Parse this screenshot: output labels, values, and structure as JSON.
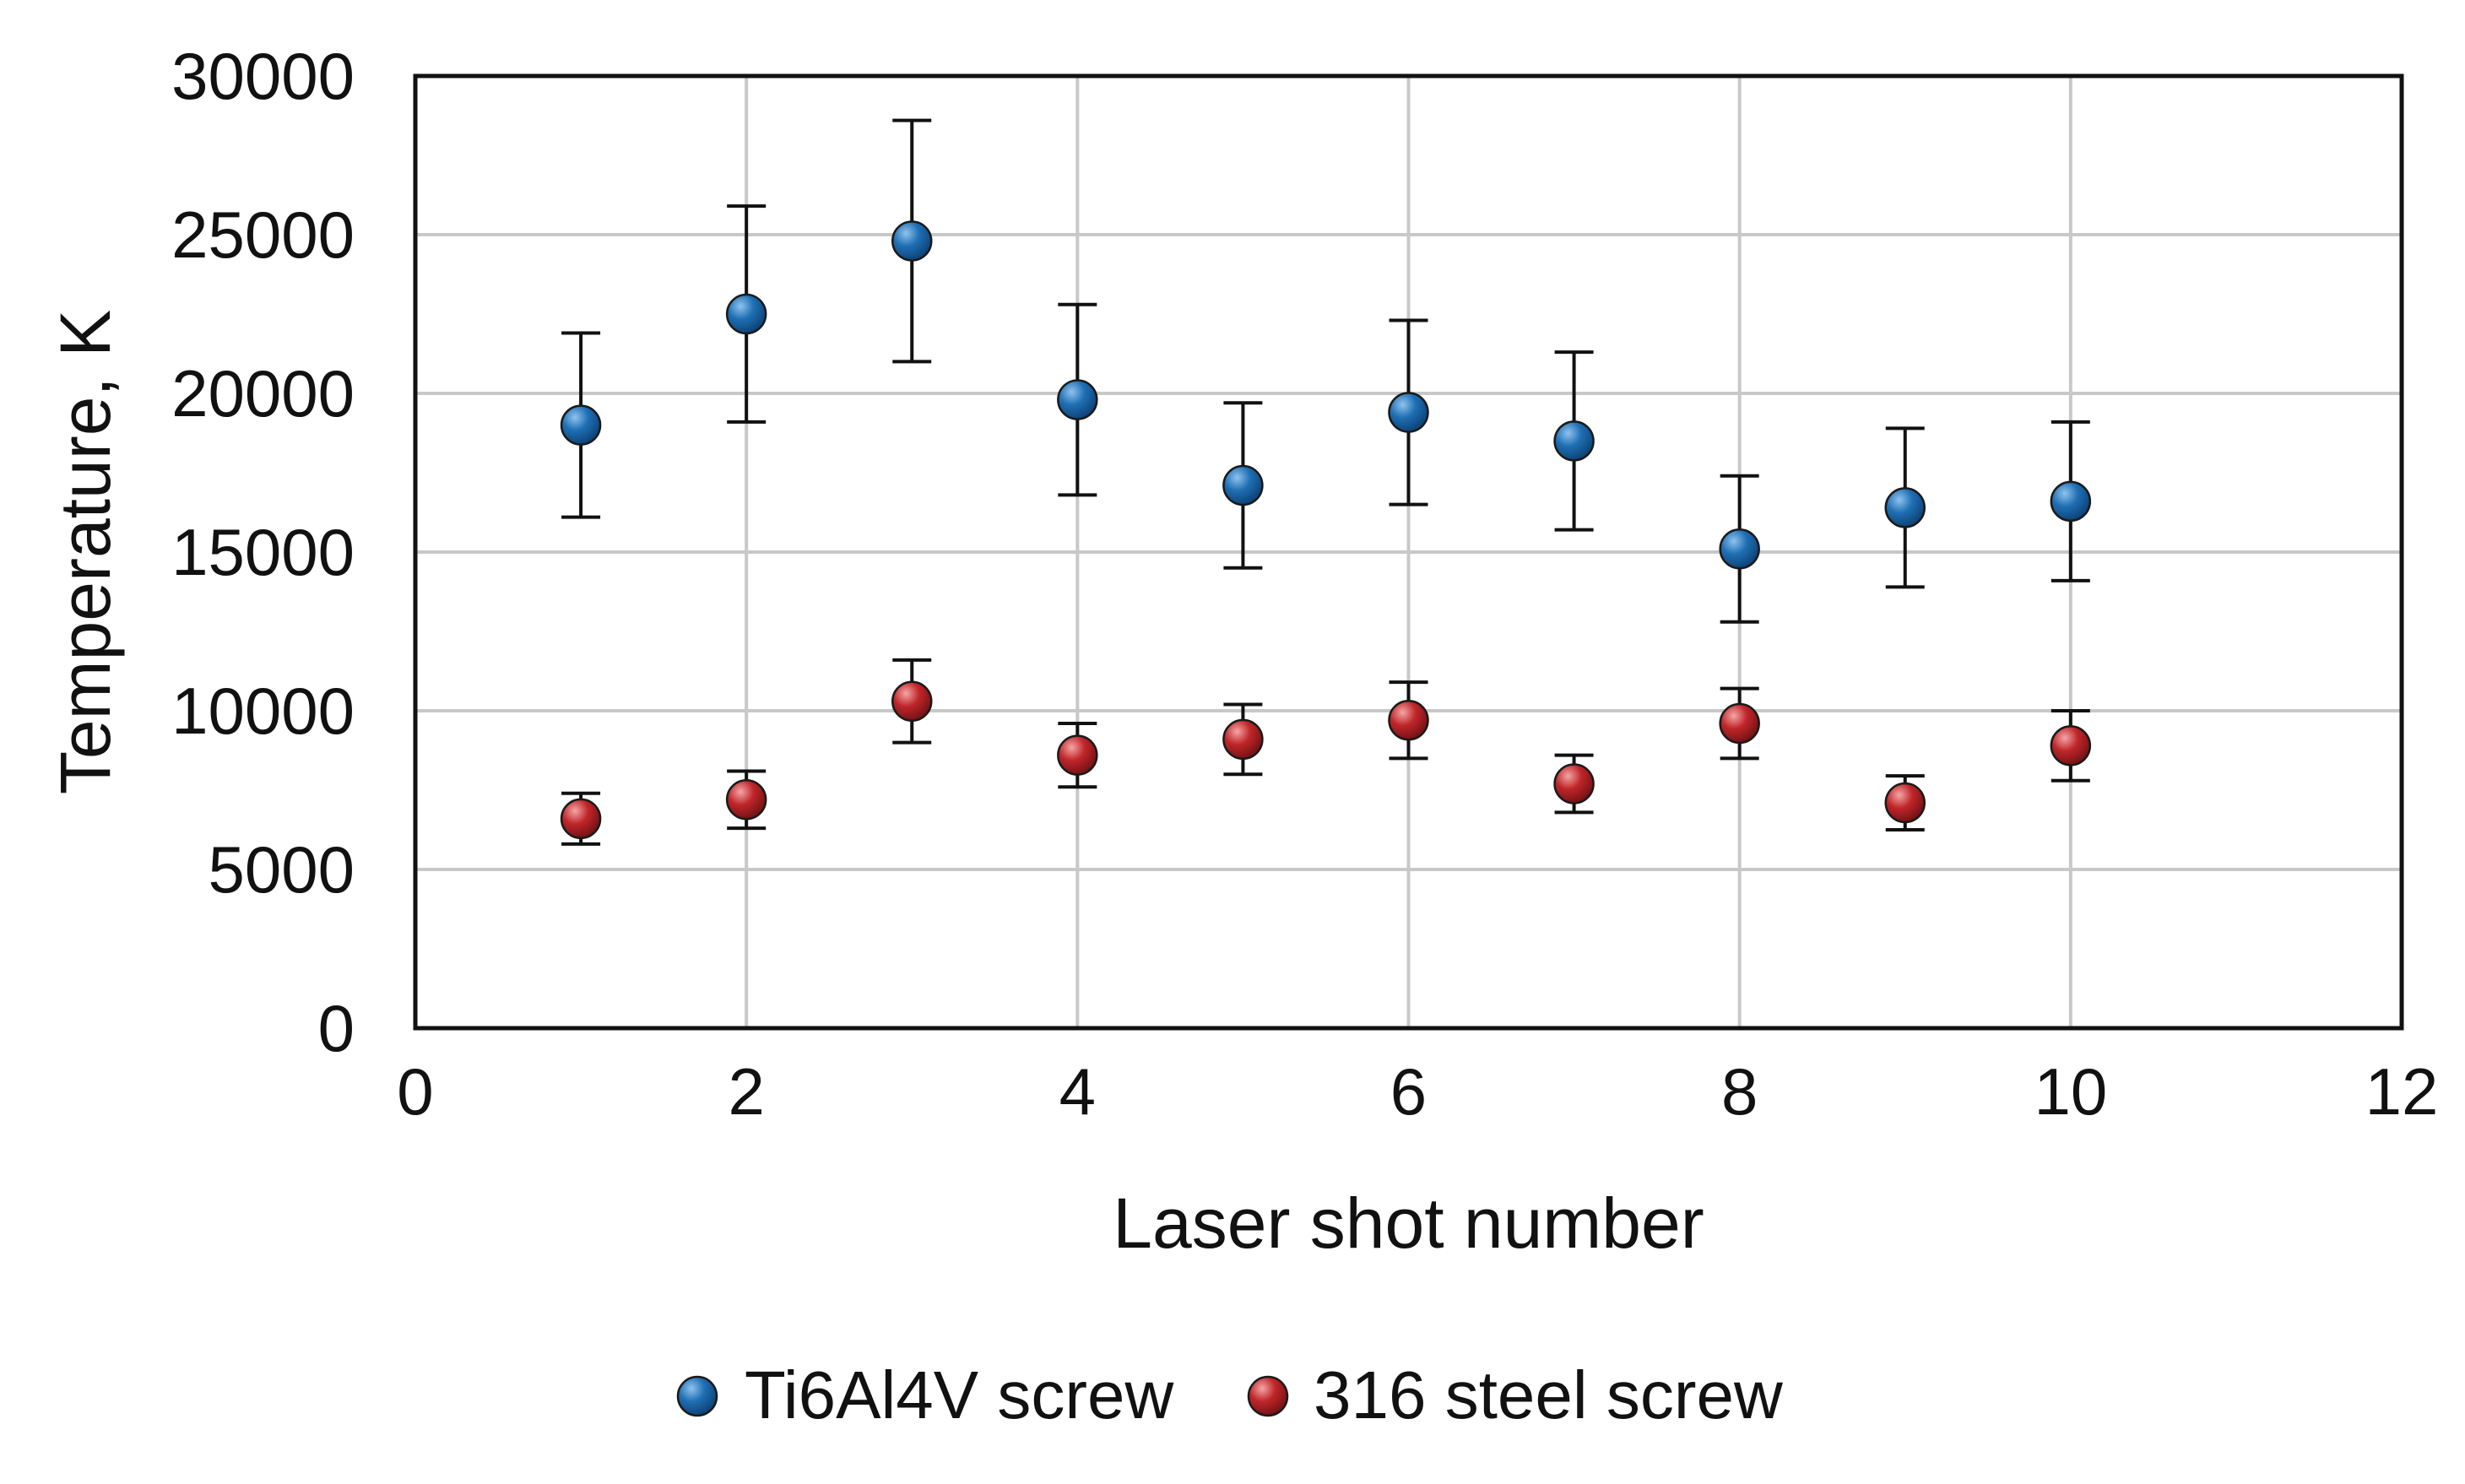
{
  "chart_data": {
    "type": "scatter",
    "title": "",
    "xlabel": "Laser shot number",
    "ylabel": "Temperature, K",
    "xlim": [
      0,
      12
    ],
    "ylim": [
      0,
      30000
    ],
    "xticks": [
      0,
      2,
      4,
      6,
      8,
      10,
      12
    ],
    "yticks": [
      0,
      5000,
      10000,
      15000,
      20000,
      25000,
      30000
    ],
    "xtick_labels": [
      "0",
      "2",
      "4",
      "6",
      "8",
      "10",
      "12"
    ],
    "ytick_labels": [
      "0",
      "5000",
      "10000",
      "15000",
      "20000",
      "25000",
      "30000"
    ],
    "grid": true,
    "legend_position": "bottom-center",
    "series": [
      {
        "name": "Ti6Al4V screw",
        "color": "#1f6fb4",
        "x": [
          1,
          2,
          3,
          4,
          5,
          6,
          7,
          8,
          9,
          10
        ],
        "y": [
          19000,
          22500,
          24800,
          19800,
          17100,
          19400,
          18500,
          15100,
          16400,
          16600
        ],
        "err": [
          2900,
          3400,
          3800,
          3000,
          2600,
          2900,
          2800,
          2300,
          2500,
          2500
        ]
      },
      {
        "name": "316 steel screw",
        "color": "#c0262a",
        "x": [
          1,
          2,
          3,
          4,
          5,
          6,
          7,
          8,
          9,
          10
        ],
        "y": [
          6600,
          7200,
          10300,
          8600,
          9100,
          9700,
          7700,
          9600,
          7100,
          8900
        ],
        "err": [
          800,
          900,
          1300,
          1000,
          1100,
          1200,
          900,
          1100,
          850,
          1100
        ]
      }
    ]
  }
}
